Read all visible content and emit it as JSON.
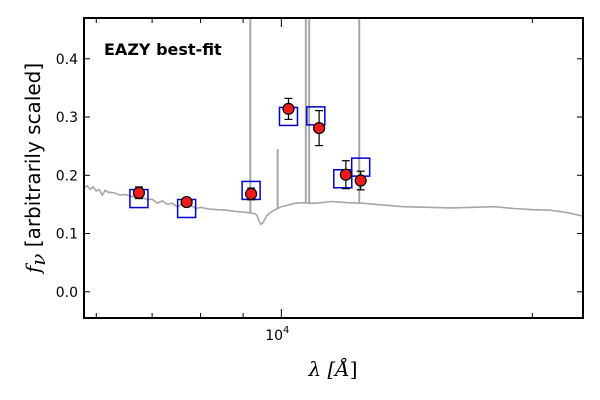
{
  "chart_data": {
    "type": "scatter",
    "annotation": "EAZY best-fit",
    "xlabel": {
      "main": "λ [",
      "unit": "Å",
      "close": "]"
    },
    "ylabel": {
      "f": "f",
      "sub": "ν",
      "rest": " [arbitrarily scaled]"
    },
    "xscale": "log",
    "xlim": [
      5800,
      23000
    ],
    "ylim": [
      -0.045,
      0.47
    ],
    "x_ticks": [
      {
        "value": 10000,
        "base": "10",
        "exp": "4"
      }
    ],
    "y_ticks": [
      0.0,
      0.1,
      0.2,
      0.3,
      0.4
    ],
    "y_tick_labels": [
      "0.0",
      "0.1",
      "0.2",
      "0.3",
      "0.4"
    ],
    "grid": false,
    "colors": {
      "model": "#a6a6a6",
      "observed_fill": "#ee1c1c",
      "model_photometry": "#0000cc",
      "annotation": "#ee0000"
    },
    "series": [
      {
        "kind": "observed-photometry",
        "points": [
          {
            "x": 6750,
            "y": 0.17,
            "err": 0.01
          },
          {
            "x": 7700,
            "y": 0.154,
            "err": 0.006
          },
          {
            "x": 9200,
            "y": 0.168,
            "err": 0.01
          },
          {
            "x": 10200,
            "y": 0.314,
            "err": 0.018
          },
          {
            "x": 11100,
            "y": 0.281,
            "err": 0.03
          },
          {
            "x": 11950,
            "y": 0.201,
            "err": 0.024
          },
          {
            "x": 12450,
            "y": 0.191,
            "err": 0.016
          }
        ]
      },
      {
        "kind": "model-photometry",
        "points": [
          {
            "x": 6750,
            "y": 0.16
          },
          {
            "x": 7700,
            "y": 0.143
          },
          {
            "x": 9200,
            "y": 0.174
          },
          {
            "x": 10200,
            "y": 0.301
          },
          {
            "x": 11000,
            "y": 0.302
          },
          {
            "x": 11850,
            "y": 0.194
          },
          {
            "x": 12450,
            "y": 0.214
          }
        ]
      },
      {
        "kind": "model-sed",
        "continuum": [
          [
            5800,
            0.178
          ],
          [
            5850,
            0.182
          ],
          [
            5900,
            0.176
          ],
          [
            5950,
            0.18
          ],
          [
            6000,
            0.173
          ],
          [
            6050,
            0.175
          ],
          [
            6100,
            0.166
          ],
          [
            6150,
            0.174
          ],
          [
            6200,
            0.171
          ],
          [
            6300,
            0.17
          ],
          [
            6400,
            0.166
          ],
          [
            6500,
            0.167
          ],
          [
            6600,
            0.164
          ],
          [
            6700,
            0.162
          ],
          [
            6800,
            0.163
          ],
          [
            6900,
            0.158
          ],
          [
            7000,
            0.159
          ],
          [
            7100,
            0.152
          ],
          [
            7200,
            0.156
          ],
          [
            7300,
            0.15
          ],
          [
            7400,
            0.152
          ],
          [
            7500,
            0.146
          ],
          [
            7600,
            0.15
          ],
          [
            7700,
            0.146
          ],
          [
            7800,
            0.148
          ],
          [
            7900,
            0.143
          ],
          [
            8000,
            0.145
          ],
          [
            8200,
            0.142
          ],
          [
            8400,
            0.141
          ],
          [
            8600,
            0.14
          ],
          [
            8800,
            0.138
          ],
          [
            9000,
            0.137
          ],
          [
            9200,
            0.135
          ],
          [
            9300,
            0.134
          ],
          [
            9350,
            0.131
          ],
          [
            9400,
            0.122
          ],
          [
            9450,
            0.116
          ],
          [
            9500,
            0.118
          ],
          [
            9600,
            0.13
          ],
          [
            9700,
            0.136
          ],
          [
            9800,
            0.14
          ],
          [
            9900,
            0.143
          ],
          [
            10000,
            0.146
          ],
          [
            10200,
            0.149
          ],
          [
            10400,
            0.152
          ],
          [
            10600,
            0.153
          ],
          [
            10800,
            0.152
          ],
          [
            11000,
            0.152
          ],
          [
            11500,
            0.155
          ],
          [
            12000,
            0.153
          ],
          [
            12500,
            0.152
          ],
          [
            13000,
            0.15
          ],
          [
            13500,
            0.148
          ],
          [
            14000,
            0.146
          ],
          [
            15000,
            0.145
          ],
          [
            16000,
            0.144
          ],
          [
            17000,
            0.145
          ],
          [
            18000,
            0.146
          ],
          [
            19000,
            0.143
          ],
          [
            20000,
            0.141
          ],
          [
            21000,
            0.14
          ],
          [
            22000,
            0.136
          ],
          [
            23000,
            0.13
          ]
        ],
        "emission_lines": [
          {
            "x": 9180,
            "peak": 0.47
          },
          {
            "x": 9900,
            "peak": 0.245
          },
          {
            "x": 10700,
            "peak": 0.47
          },
          {
            "x": 10800,
            "peak": 0.47
          },
          {
            "x": 12400,
            "peak": 0.47
          }
        ]
      }
    ]
  }
}
